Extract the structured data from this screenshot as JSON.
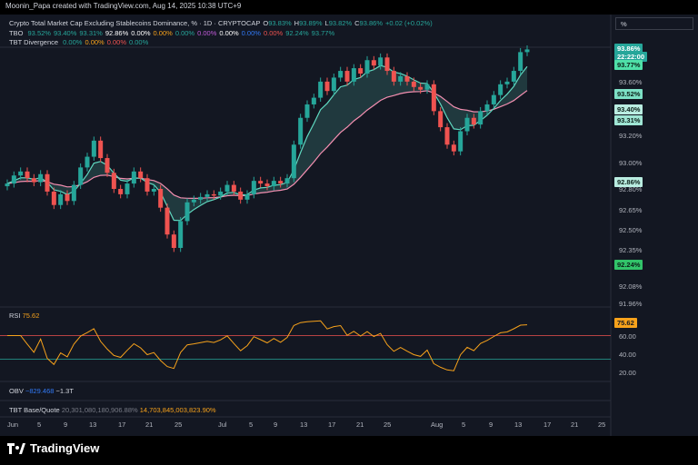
{
  "header": {
    "attribution": "Moonin_Papa created with TradingView.com, Aug 14, 2025 10:38 UTC+9"
  },
  "symbol_legend": {
    "title": "Crypto Total Market Cap Excluding Stablecoins Dominance, % · 1D · CRYPTOCAP",
    "o_label": "O",
    "o": "93.83%",
    "h_label": "H",
    "h": "93.89%",
    "l_label": "L",
    "l": "93.82%",
    "c_label": "C",
    "c": "93.86%",
    "change": "+0.02 (+0.02%)"
  },
  "tbo_legend": {
    "name": "TBO",
    "values": [
      "93.52%",
      "93.40%",
      "93.31%",
      "92.86%",
      "0.00%",
      "0.00%",
      "0.00%",
      "0.00%",
      "0.00%",
      "0.00%",
      "0.00%",
      "92.24%",
      "93.77%"
    ]
  },
  "tbt_div_legend": {
    "name": "TBT Divergence",
    "values": [
      "0.00%",
      "0.00%",
      "0.00%",
      "0.00%"
    ]
  },
  "scale_mode": "%",
  "price_axis": {
    "ticks": [
      "93.60%",
      "93.20%",
      "93.00%",
      "92.80%",
      "92.65%",
      "92.50%",
      "92.35%",
      "92.20%",
      "92.08%",
      "91.96%"
    ],
    "tags": [
      {
        "text": "93.86%",
        "bg": "#26a69a",
        "fg": "#ffffff"
      },
      {
        "text": "22:22:00",
        "bg": "#26a69a",
        "fg": "#ffffff"
      },
      {
        "text": "93.77%",
        "bg": "#4fe0a8",
        "fg": "#0b1f18"
      },
      {
        "text": "93.52%",
        "bg": "#7de0c5",
        "fg": "#0b1f18"
      },
      {
        "text": "93.40%",
        "bg": "#b9ece0",
        "fg": "#0b1f18"
      },
      {
        "text": "93.31%",
        "bg": "#9fe5d4",
        "fg": "#0b1f18"
      },
      {
        "text": "92.86%",
        "bg": "#b9ece0",
        "fg": "#0b1f18"
      },
      {
        "text": "92.24%",
        "bg": "#32c46a",
        "fg": "#0b1f18"
      }
    ]
  },
  "rsi": {
    "label": "RSI",
    "value": "75.62",
    "ticks": [
      "60.00",
      "40.00",
      "20.00"
    ],
    "tag": "75.62",
    "upper": 70,
    "lower": 30
  },
  "obv": {
    "label": "OBV",
    "v1": "−829.468",
    "v2": "−1.3T"
  },
  "tbt_bq": {
    "label": "TBT Base/Quote",
    "v1": "20,301,080,180,906.88%",
    "v2": "14,703,845,003,823.90%"
  },
  "time_axis": [
    "Jun",
    "5",
    "9",
    "13",
    "17",
    "21",
    "25",
    "Jul",
    "5",
    "9",
    "13",
    "17",
    "21",
    "25",
    "Aug",
    "5",
    "9",
    "13",
    "17",
    "21",
    "25"
  ],
  "footer": {
    "brand": "TradingView"
  },
  "colors": {
    "up": "#26a69a",
    "down": "#ef5350",
    "teal_line": "#5fd8c0",
    "pink_line": "#f48fb1",
    "rsi": "#f7a21b"
  },
  "chart_data": {
    "type": "candlestick",
    "timeframe": "1D",
    "x_range": [
      "2025-05-31",
      "2025-08-13"
    ],
    "ylim": [
      91.96,
      93.89
    ],
    "closes": [
      92.86,
      92.92,
      92.95,
      92.9,
      92.87,
      92.93,
      92.8,
      92.7,
      92.78,
      92.73,
      92.85,
      92.98,
      93.06,
      93.18,
      93.05,
      92.94,
      92.82,
      92.78,
      92.86,
      92.95,
      92.9,
      92.8,
      92.82,
      92.68,
      92.48,
      92.38,
      92.58,
      92.72,
      92.74,
      92.76,
      92.78,
      92.77,
      92.8,
      92.85,
      92.8,
      92.74,
      92.78,
      92.88,
      92.86,
      92.84,
      92.88,
      92.86,
      92.9,
      93.15,
      93.35,
      93.45,
      93.5,
      93.62,
      93.55,
      93.65,
      93.7,
      93.62,
      93.72,
      93.68,
      93.78,
      93.74,
      93.8,
      93.7,
      93.62,
      93.66,
      93.62,
      93.58,
      93.56,
      93.6,
      93.4,
      93.28,
      93.15,
      93.1,
      93.25,
      93.35,
      93.3,
      93.4,
      93.45,
      93.52,
      93.6,
      93.62,
      93.7,
      93.84,
      93.86
    ]
  }
}
